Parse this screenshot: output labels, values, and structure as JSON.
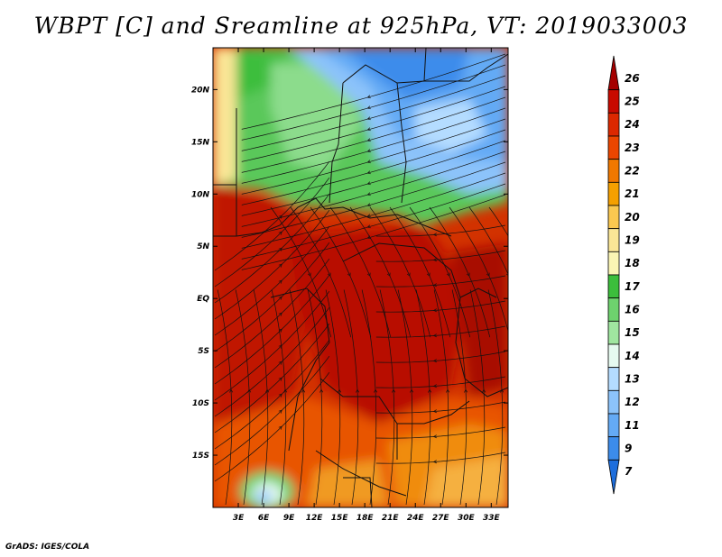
{
  "title": "WBPT [C] and Sreamline at 925hPa, VT: 2019033003",
  "credit": "GrADS: IGES/COLA",
  "map": {
    "lon_range": [
      0,
      35
    ],
    "lat_range": [
      -20,
      24
    ],
    "lon_ticks": [
      "3E",
      "6E",
      "9E",
      "12E",
      "15E",
      "18E",
      "21E",
      "24E",
      "27E",
      "30E",
      "33E"
    ],
    "lat_ticks": [
      "20N",
      "15N",
      "10N",
      "5N",
      "EQ",
      "5S",
      "10S",
      "15S"
    ]
  },
  "colorbar": {
    "labels": [
      "26",
      "25",
      "24",
      "23",
      "22",
      "21",
      "20",
      "19",
      "18",
      "17",
      "16",
      "15",
      "14",
      "13",
      "12",
      "11",
      "9",
      "7"
    ],
    "colors": [
      "#a50000",
      "#c80a00",
      "#dc2800",
      "#eb4600",
      "#f07800",
      "#f5a000",
      "#fac850",
      "#fae696",
      "#faf5b4",
      "#3cbe3c",
      "#6ed26e",
      "#a0e6a0",
      "#e6faf0",
      "#b4dcff",
      "#8cc3fa",
      "#64aaf5",
      "#3c8ceb",
      "#1e6edc"
    ]
  }
}
